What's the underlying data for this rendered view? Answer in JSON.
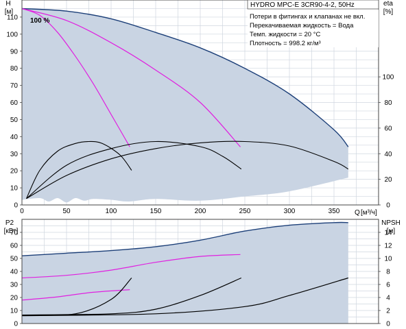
{
  "chart_data": [
    {
      "type": "line",
      "title": "HYDRO MPC-E 3CR90-4-2, 50Hz",
      "notes": [
        "Потери в фитингах и клапанах не вкл.",
        "Перекачиваемая жидкость = Вода",
        "Темп. жидкости = 20 °C",
        "Плотность = 998.2 кг/м³"
      ],
      "curve_label": "100 %",
      "ylabel": "H",
      "yunit": "[м]",
      "y2label": "eta",
      "y2unit": "[%]",
      "xlabel": "Q",
      "xunit": "[м³/ч]",
      "xlim": [
        0,
        400
      ],
      "ylim": [
        0,
        120
      ],
      "y2lim": [
        0,
        160
      ],
      "xticks": [
        0,
        50,
        100,
        150,
        200,
        250,
        300,
        350
      ],
      "yticks": [
        0,
        10,
        20,
        30,
        40,
        50,
        60,
        70,
        80,
        90,
        100,
        110
      ],
      "y2ticks": [
        0,
        20,
        40,
        60,
        80,
        100
      ],
      "grid": true,
      "series": [
        {
          "role": "range-upper",
          "axis": "y",
          "color": "#1c3f78",
          "x": [
            0,
            50,
            100,
            150,
            200,
            250,
            300,
            350,
            366
          ],
          "y": [
            115,
            113.5,
            109,
            101,
            92,
            80,
            65,
            44,
            34
          ]
        },
        {
          "role": "range-lower",
          "axis": "y",
          "x": [
            0,
            20,
            30,
            40,
            50,
            60,
            70,
            80,
            100,
            120,
            150,
            200,
            250,
            300,
            366
          ],
          "y": [
            3,
            4,
            2,
            4,
            1.5,
            4,
            2.5,
            3.5,
            3,
            2,
            3.5,
            2.5,
            5,
            8,
            16
          ]
        },
        {
          "role": "head",
          "axis": "y",
          "color": "#e020e0",
          "x": [
            0,
            20,
            40,
            60,
            80,
            100,
            121
          ],
          "y": [
            115,
            111,
            101,
            87,
            71,
            53,
            34
          ]
        },
        {
          "role": "head",
          "axis": "y",
          "color": "#e020e0",
          "x": [
            0,
            50,
            100,
            150,
            200,
            245
          ],
          "y": [
            115,
            108,
            95,
            79,
            60,
            34
          ]
        },
        {
          "role": "efficiency",
          "axis": "y2",
          "color": "#000000",
          "x": [
            5,
            20,
            40,
            60,
            75,
            90,
            110,
            123
          ],
          "y": [
            5,
            27,
            42,
            48,
            49.5,
            48,
            39,
            27
          ]
        },
        {
          "role": "efficiency",
          "axis": "y2",
          "color": "#000000",
          "x": [
            5,
            50,
            100,
            150,
            200,
            225,
            246
          ],
          "y": [
            5,
            31,
            44,
            49.5,
            45.5,
            38,
            28
          ]
        },
        {
          "role": "efficiency",
          "axis": "y2",
          "color": "#000000",
          "x": [
            5,
            50,
            100,
            150,
            200,
            250,
            300,
            350,
            366
          ],
          "y": [
            5,
            23,
            36,
            44,
            48.5,
            49.5,
            46,
            34,
            28
          ]
        }
      ]
    },
    {
      "type": "line",
      "ylabel": "P2",
      "yunit": "[кВт]",
      "y2label": "NPSH",
      "y2unit": "[м]",
      "ylim": [
        0,
        80
      ],
      "y2lim": [
        0,
        16
      ],
      "xlim": [
        0,
        400
      ],
      "yticks": [
        0,
        10,
        20,
        30,
        40,
        50,
        60,
        70
      ],
      "y2ticks": [
        0,
        2,
        4,
        6,
        8,
        10,
        12,
        14
      ],
      "grid": true,
      "series": [
        {
          "role": "range-upper",
          "axis": "y",
          "color": "#1c3f78",
          "x": [
            0,
            50,
            100,
            150,
            200,
            250,
            300,
            350,
            366
          ],
          "y": [
            52,
            54,
            56,
            59,
            64,
            71,
            75.5,
            77.5,
            77.5
          ]
        },
        {
          "role": "range-lower",
          "axis": "y",
          "x": [
            0,
            50,
            100,
            200,
            300,
            366
          ],
          "y": [
            0,
            0,
            0,
            0,
            0,
            0
          ]
        },
        {
          "role": "power",
          "axis": "y",
          "color": "#e020e0",
          "x": [
            0,
            50,
            100,
            150,
            200,
            245
          ],
          "y": [
            35,
            37,
            41,
            47,
            51.5,
            53
          ]
        },
        {
          "role": "power",
          "axis": "y",
          "color": "#e020e0",
          "x": [
            0,
            40,
            80,
            121
          ],
          "y": [
            18,
            20.5,
            24,
            26
          ]
        },
        {
          "role": "npsh",
          "axis": "y2",
          "color": "#000000",
          "x": [
            0,
            60,
            100,
            123
          ],
          "y": [
            1.3,
            1.5,
            3.7,
            7
          ]
        },
        {
          "role": "npsh",
          "axis": "y2",
          "color": "#000000",
          "x": [
            0,
            100,
            150,
            200,
            246
          ],
          "y": [
            1.3,
            1.5,
            2.2,
            4.3,
            7
          ]
        },
        {
          "role": "npsh",
          "axis": "y2",
          "color": "#000000",
          "x": [
            0,
            150,
            250,
            300,
            366
          ],
          "y": [
            1.2,
            1.5,
            2.6,
            4.3,
            7
          ]
        }
      ]
    }
  ]
}
